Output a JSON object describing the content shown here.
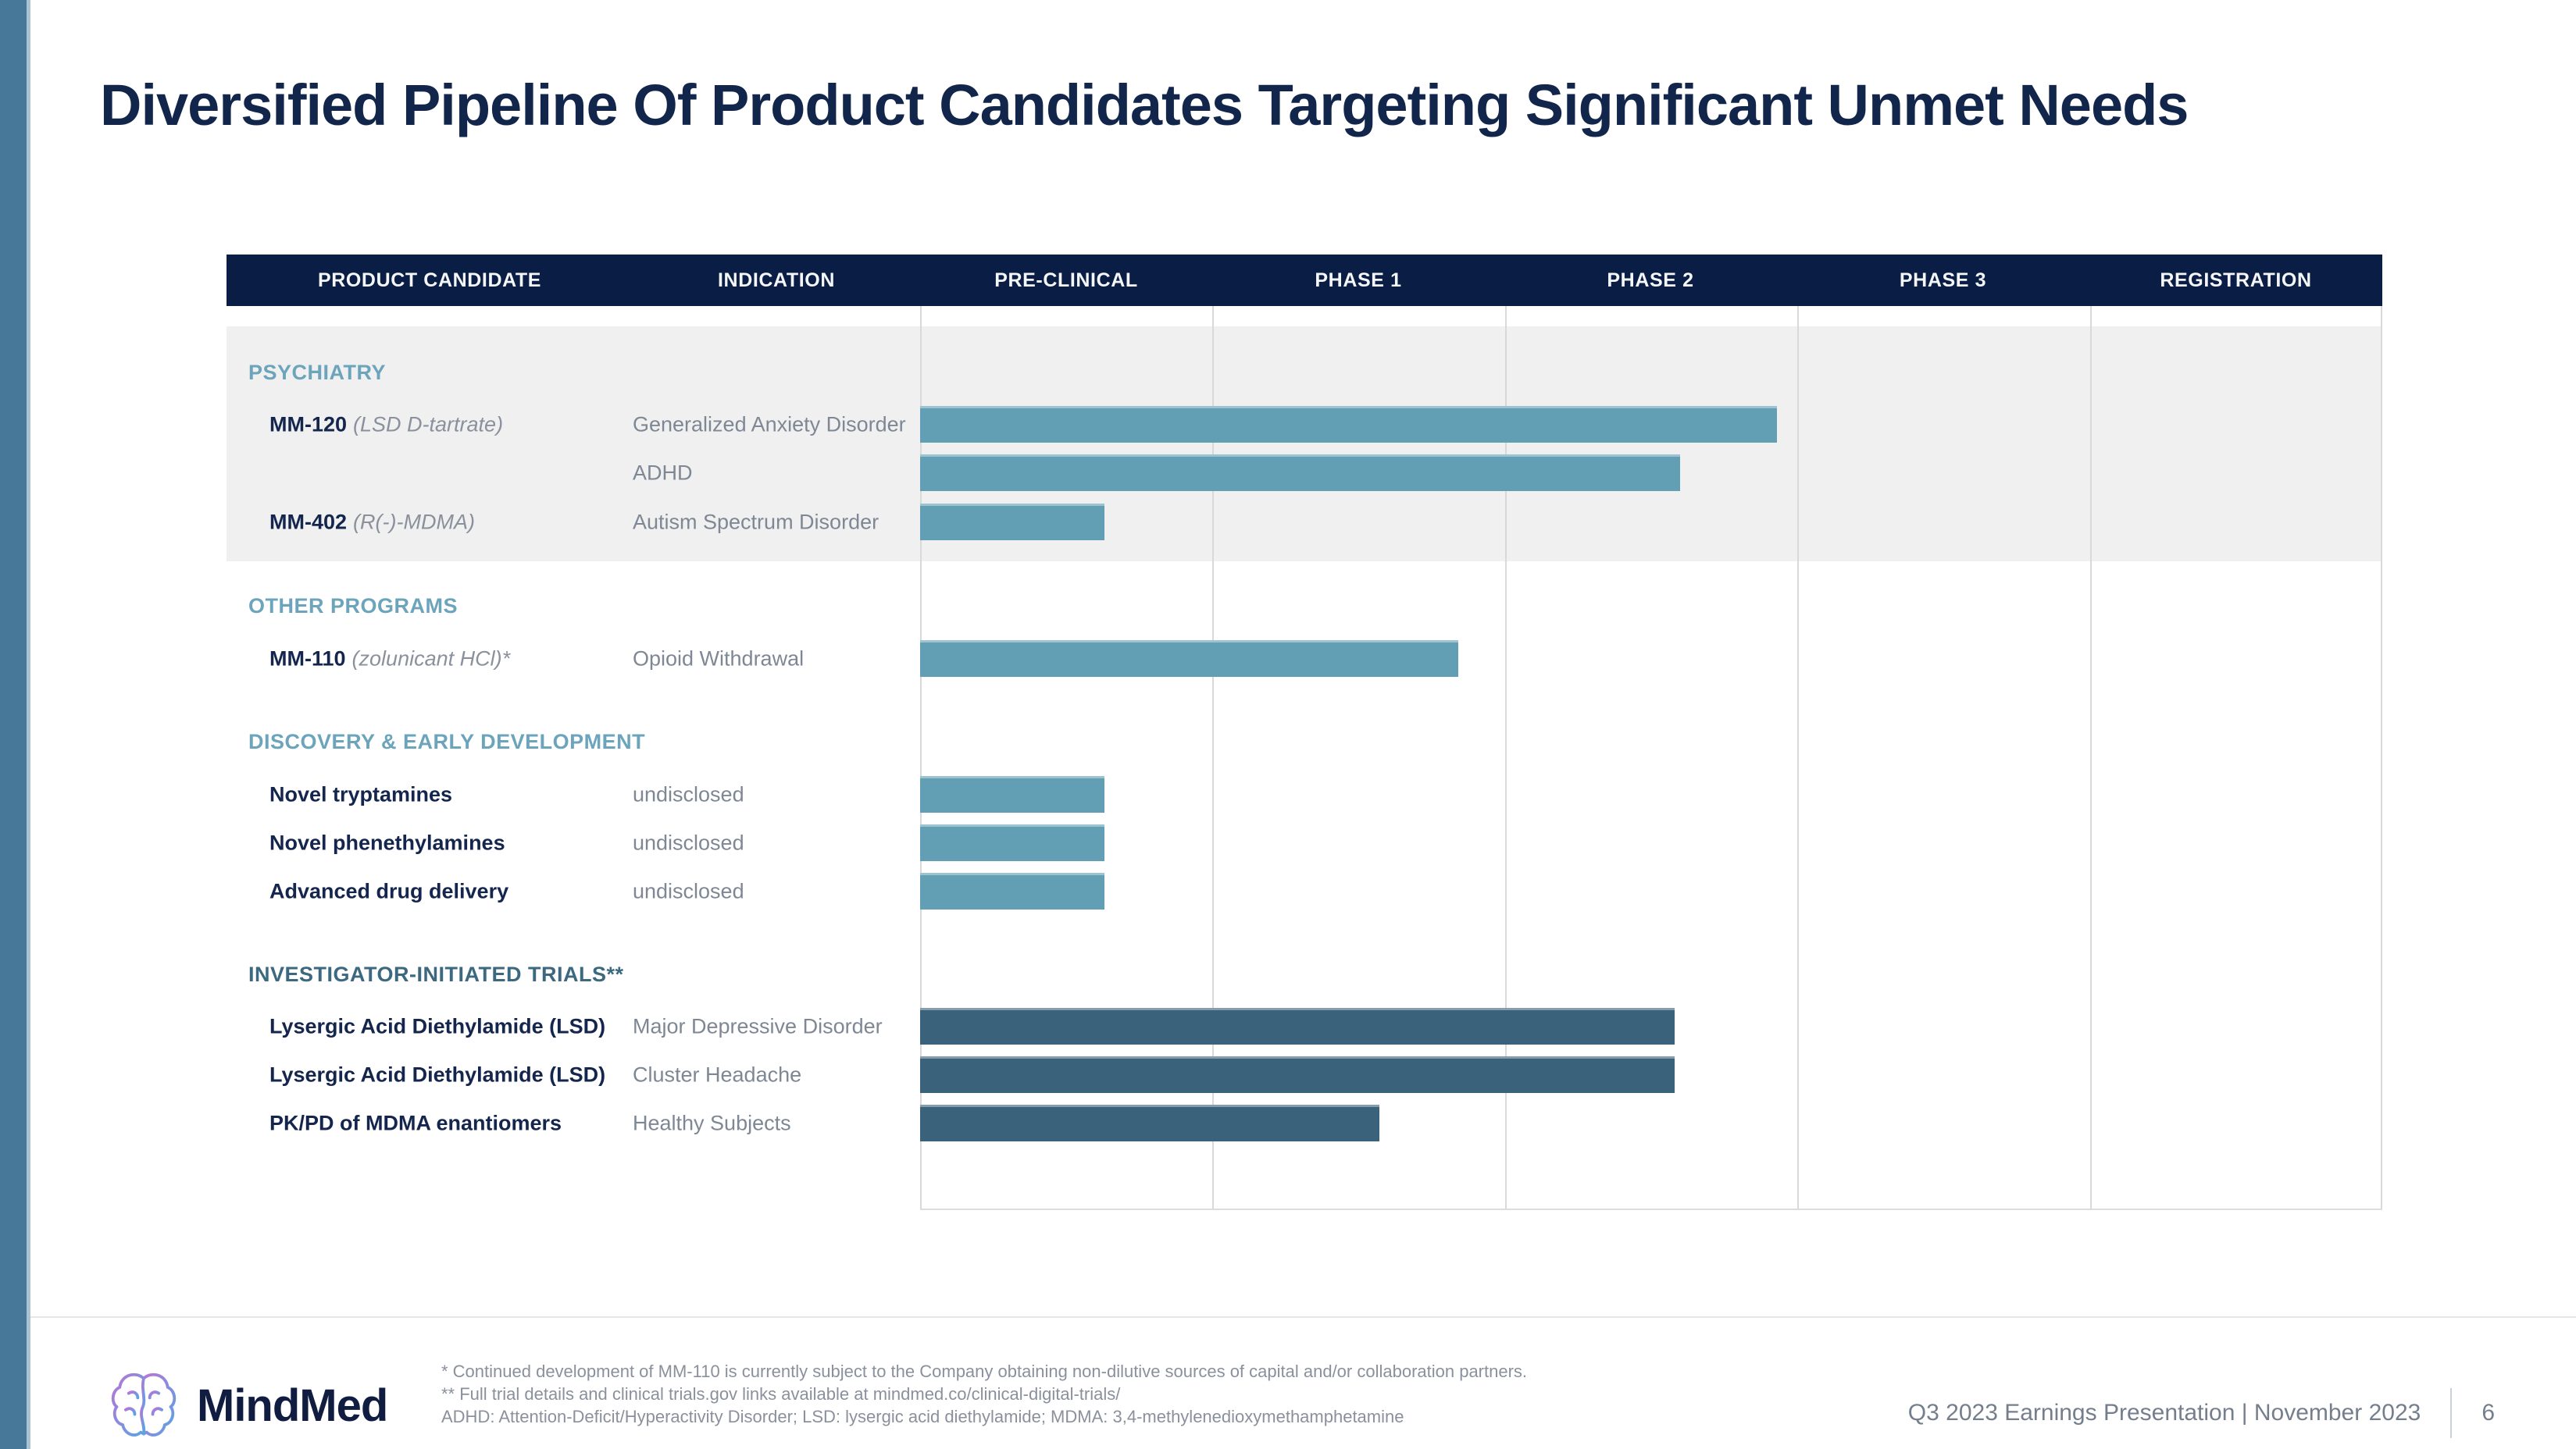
{
  "slide": {
    "title": "Diversified Pipeline Of Product Candidates Targeting Significant Unmet Needs",
    "footer": {
      "brand": "MindMed",
      "footnote1": "* Continued development of MM-110 is currently subject to the Company obtaining non-dilutive sources of capital and/or collaboration partners.",
      "footnote2": "** Full trial details and clinical trials.gov links available at mindmed.co/clinical-digital-trials/",
      "footnote3": "ADHD: Attention-Deficit/Hyperactivity Disorder; LSD: lysergic acid diethylamide; MDMA: 3,4-methylenedioxymethamphetamine",
      "presentation_label": "Q3 2023 Earnings Presentation | November 2023",
      "page_number": "6"
    }
  },
  "table": {
    "columns": [
      "PRODUCT CANDIDATE",
      "INDICATION",
      "PRE-CLINICAL",
      "PHASE 1",
      "PHASE 2",
      "PHASE 3",
      "REGISTRATION"
    ]
  },
  "chart_data": {
    "type": "bar",
    "orientation": "horizontal",
    "title": "Diversified Pipeline Of Product Candidates Targeting Significant Unmet Needs",
    "x_axis_stages": [
      "PRE-CLINICAL",
      "PHASE 1",
      "PHASE 2",
      "PHASE 3",
      "REGISTRATION"
    ],
    "x_range_stages": [
      0,
      5
    ],
    "grid": true,
    "bar_colors": {
      "light": "#639fb4",
      "dark": "#3b627b"
    },
    "accent_colors": {
      "header_bg": "#0a1e45",
      "section_teal": "#6ba4bb",
      "section_slate": "#3c6880",
      "band_gray": "#f0f0f0"
    },
    "sections": [
      {
        "name": "PSYCHIATRY",
        "color": "#6ba4bb",
        "rows": [
          {
            "product": "MM-120",
            "note": "(LSD D-tartrate)",
            "indication": "Generalized Anxiety Disorder",
            "stage_end": 2.93,
            "bar": "light"
          },
          {
            "product": "",
            "note": "",
            "indication": "ADHD",
            "stage_end": 2.6,
            "bar": "light"
          },
          {
            "product": "MM-402",
            "note": "(R(-)-MDMA)",
            "indication": "Autism Spectrum Disorder",
            "stage_end": 0.63,
            "bar": "light"
          }
        ]
      },
      {
        "name": "OTHER PROGRAMS",
        "color": "#6ba4bb",
        "rows": [
          {
            "product": "MM-110",
            "note": "(zolunicant HCl)*",
            "indication": "Opioid Withdrawal",
            "stage_end": 1.84,
            "bar": "light"
          }
        ]
      },
      {
        "name": "DISCOVERY & EARLY DEVELOPMENT",
        "color": "#6ba4bb",
        "rows": [
          {
            "product": "Novel tryptamines",
            "note": "",
            "indication": "undisclosed",
            "stage_end": 0.63,
            "bar": "light"
          },
          {
            "product": "Novel phenethylamines",
            "note": "",
            "indication": "undisclosed",
            "stage_end": 0.63,
            "bar": "light"
          },
          {
            "product": "Advanced drug delivery",
            "note": "",
            "indication": "undisclosed",
            "stage_end": 0.63,
            "bar": "light"
          }
        ]
      },
      {
        "name": "INVESTIGATOR-INITIATED TRIALS**",
        "color": "#3c6880",
        "rows": [
          {
            "product": "Lysergic Acid Diethylamide (LSD)",
            "note": "",
            "indication": "Major Depressive Disorder",
            "stage_end": 2.58,
            "bar": "dark"
          },
          {
            "product": "Lysergic Acid Diethylamide (LSD)",
            "note": "",
            "indication": "Cluster Headache",
            "stage_end": 2.58,
            "bar": "dark"
          },
          {
            "product": "PK/PD of MDMA enantiomers",
            "note": "",
            "indication": "Healthy Subjects",
            "stage_end": 1.57,
            "bar": "dark"
          }
        ]
      }
    ]
  }
}
